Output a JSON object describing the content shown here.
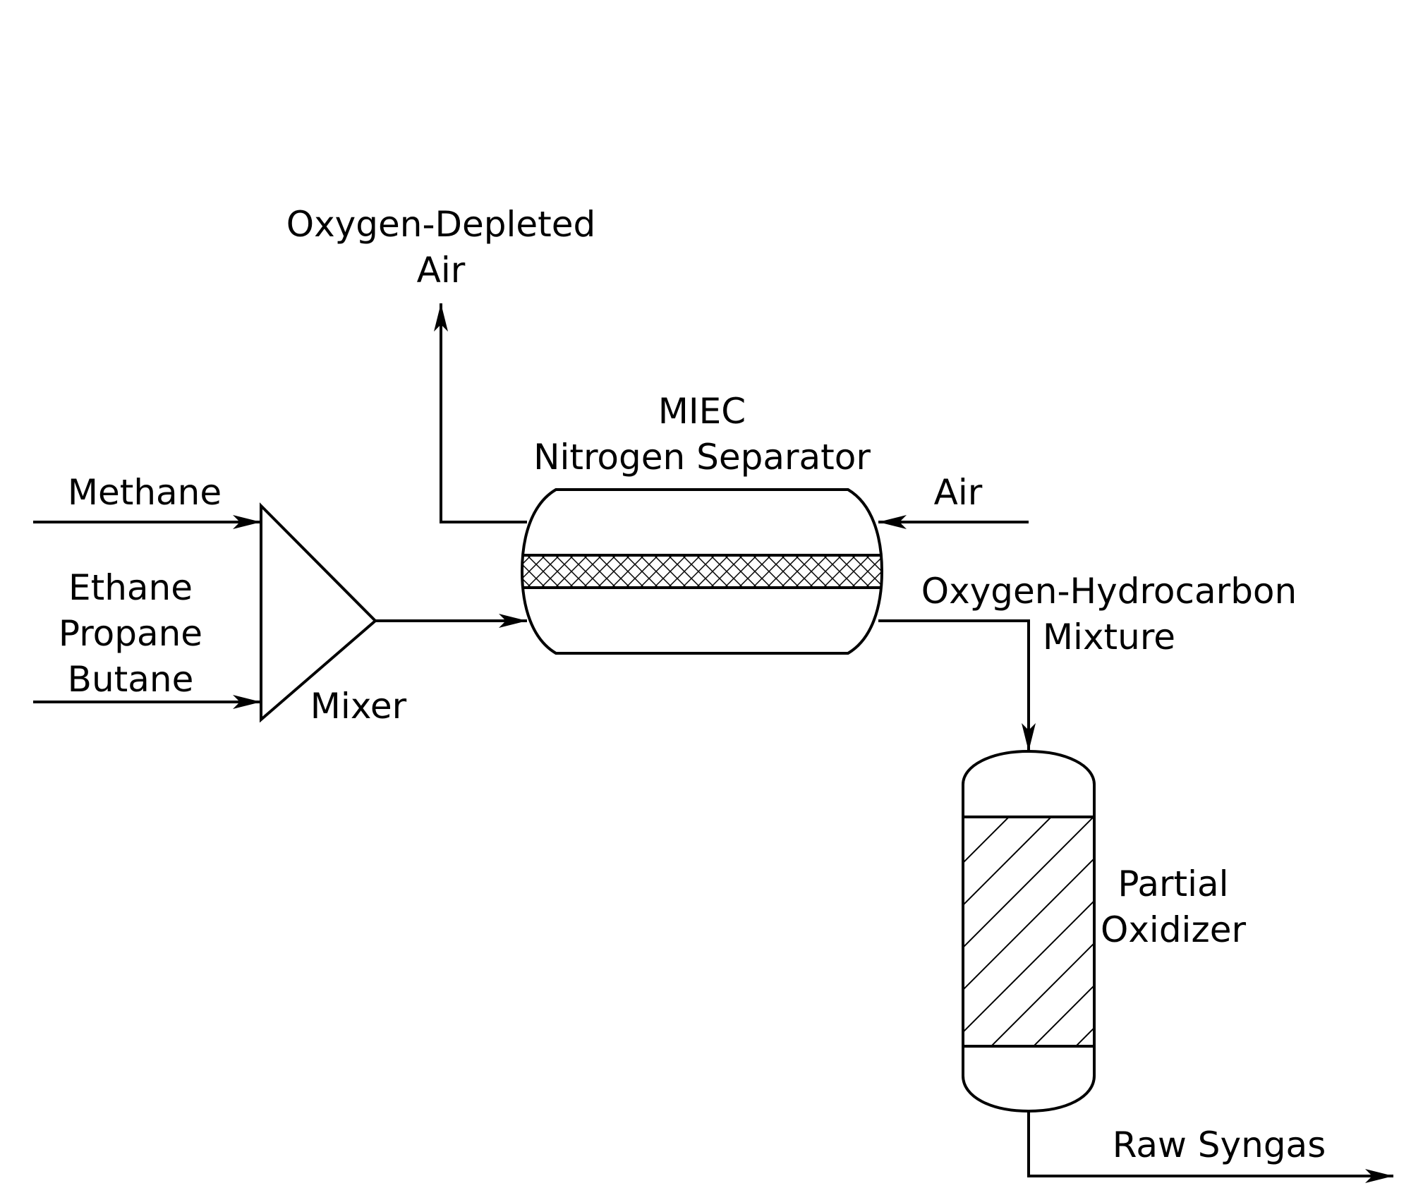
{
  "labels": {
    "oxygen_depleted_line1": "Oxygen-Depleted",
    "oxygen_depleted_line2": "Air",
    "miec_line1": "MIEC",
    "miec_line2": "Nitrogen Separator",
    "methane": "Methane",
    "air": "Air",
    "ethane": "Ethane",
    "propane": "Propane",
    "butane": "Butane",
    "mixer": "Mixer",
    "mixture_line1": "Oxygen-Hydrocarbon",
    "mixture_line2": "Mixture",
    "oxidizer_line1": "Partial",
    "oxidizer_line2": "Oxidizer",
    "raw_syngas": "Raw Syngas"
  },
  "colors": {
    "stroke": "#000000",
    "background": "#ffffff"
  }
}
